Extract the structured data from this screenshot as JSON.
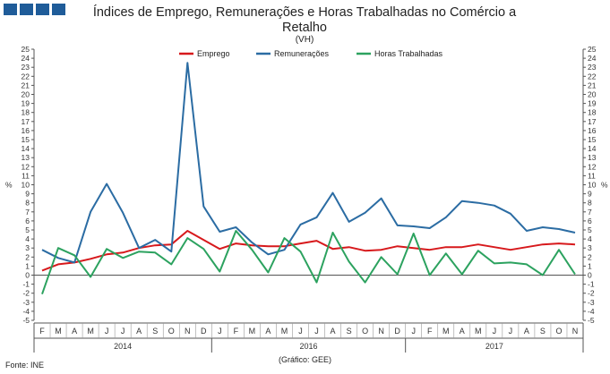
{
  "header": {
    "title": "Índices de Emprego, Remunerações e Horas Trabalhadas no Comércio a Retalho",
    "subtitle": "(VH)"
  },
  "footer": {
    "source": "Fonte: INE",
    "credit": "(Gráfico: GEE)"
  },
  "colors": {
    "logo": "#1f5c99",
    "emprego": "#d7191c",
    "remuneracoes": "#2b6ca3",
    "horas": "#2ca25f"
  },
  "chart_data": {
    "type": "line",
    "title": "Índices de Emprego, Remunerações e Horas Trabalhadas no Comércio a Retalho",
    "subtitle": "(VH)",
    "ylabel_left": "%",
    "ylabel_right": "%",
    "ylim": [
      -5,
      25
    ],
    "yticks": [
      -5,
      -4,
      -3,
      -2,
      -1,
      0,
      1,
      2,
      3,
      4,
      5,
      6,
      7,
      8,
      9,
      10,
      11,
      12,
      13,
      14,
      15,
      16,
      17,
      18,
      19,
      20,
      21,
      22,
      23,
      24,
      25
    ],
    "grid": false,
    "legend_position": "top-center",
    "categories": [
      "F",
      "M",
      "A",
      "M",
      "J",
      "J",
      "A",
      "S",
      "O",
      "N",
      "D",
      "J",
      "F",
      "M",
      "A",
      "M",
      "J",
      "J",
      "A",
      "S",
      "O",
      "N",
      "D",
      "J",
      "F",
      "M",
      "A",
      "M",
      "J",
      "J",
      "A",
      "S",
      "O",
      "N"
    ],
    "years": [
      {
        "label": "2014",
        "start": 0,
        "end": 10
      },
      {
        "label": "2016",
        "start": 11,
        "end": 22
      },
      {
        "label": "2017",
        "start": 23,
        "end": 33
      }
    ],
    "series": [
      {
        "name": "Emprego",
        "color": "#d7191c",
        "values": [
          0.5,
          1.2,
          1.4,
          1.8,
          2.3,
          2.5,
          3.0,
          3.3,
          3.4,
          4.9,
          3.9,
          2.9,
          3.5,
          3.3,
          3.2,
          3.2,
          3.5,
          3.8,
          2.9,
          3.1,
          2.7,
          2.8,
          3.2,
          3.0,
          2.8,
          3.1,
          3.1,
          3.4,
          3.1,
          2.8,
          3.1,
          3.4,
          3.5,
          3.4
        ]
      },
      {
        "name": "Remunerações",
        "color": "#2b6ca3",
        "values": [
          2.8,
          1.9,
          1.4,
          7.0,
          10.1,
          6.9,
          3.0,
          3.9,
          2.6,
          23.5,
          7.6,
          4.8,
          5.3,
          3.6,
          2.3,
          2.8,
          5.6,
          6.4,
          9.1,
          5.9,
          6.9,
          8.5,
          5.5,
          5.4,
          5.2,
          6.4,
          8.2,
          8.0,
          7.7,
          6.8,
          4.9,
          5.3,
          5.1,
          4.7
        ]
      },
      {
        "name": "Horas Trabalhadas",
        "color": "#2ca25f",
        "values": [
          -2.1,
          3.0,
          2.2,
          -0.2,
          2.9,
          1.9,
          2.6,
          2.5,
          1.2,
          4.1,
          2.9,
          0.4,
          4.9,
          2.8,
          0.3,
          4.1,
          2.6,
          -0.8,
          4.7,
          1.5,
          -0.8,
          2.0,
          0.1,
          4.6,
          0.0,
          2.4,
          0.1,
          2.7,
          1.3,
          1.4,
          1.2,
          0.0,
          2.8,
          0.1
        ]
      }
    ]
  }
}
